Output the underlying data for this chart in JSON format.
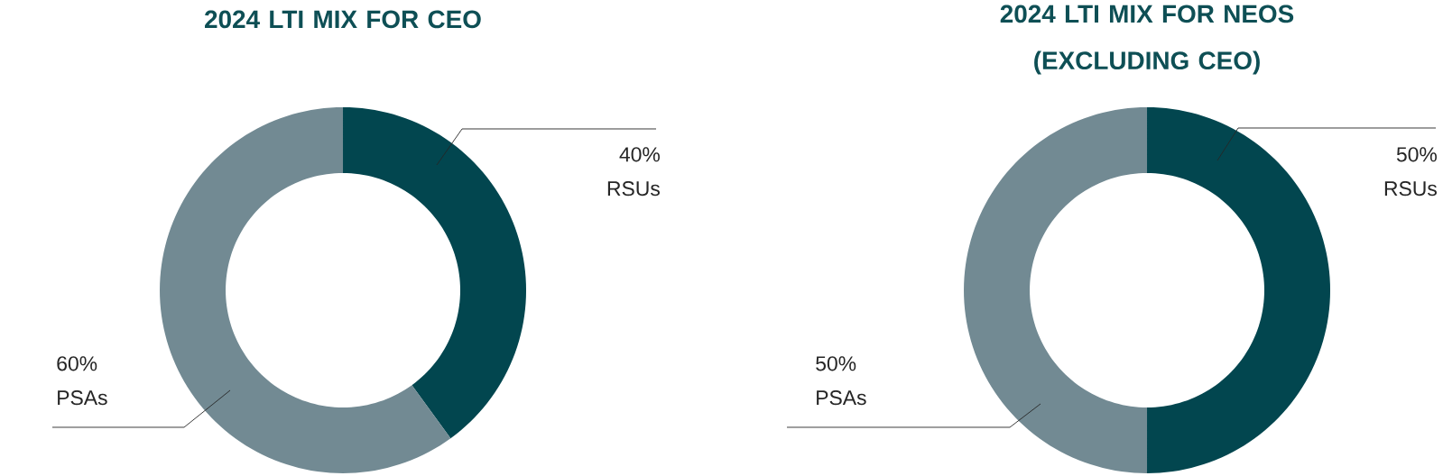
{
  "chart_data": [
    {
      "type": "donut",
      "title": "2024 LTI MIX FOR CEO",
      "categories": [
        "RSUs",
        "PSAs"
      ],
      "values": [
        40,
        60
      ],
      "colors": [
        "#02464f",
        "#728a93"
      ],
      "value_labels": [
        "40%",
        "60%"
      ]
    },
    {
      "type": "donut",
      "title": "2024 LTI MIX FOR NEOS (EXCLUDING CEO)",
      "categories": [
        "RSUs",
        "PSAs"
      ],
      "values": [
        50,
        50
      ],
      "colors": [
        "#02464f",
        "#728a93"
      ],
      "value_labels": [
        "50%",
        "50%"
      ]
    }
  ]
}
